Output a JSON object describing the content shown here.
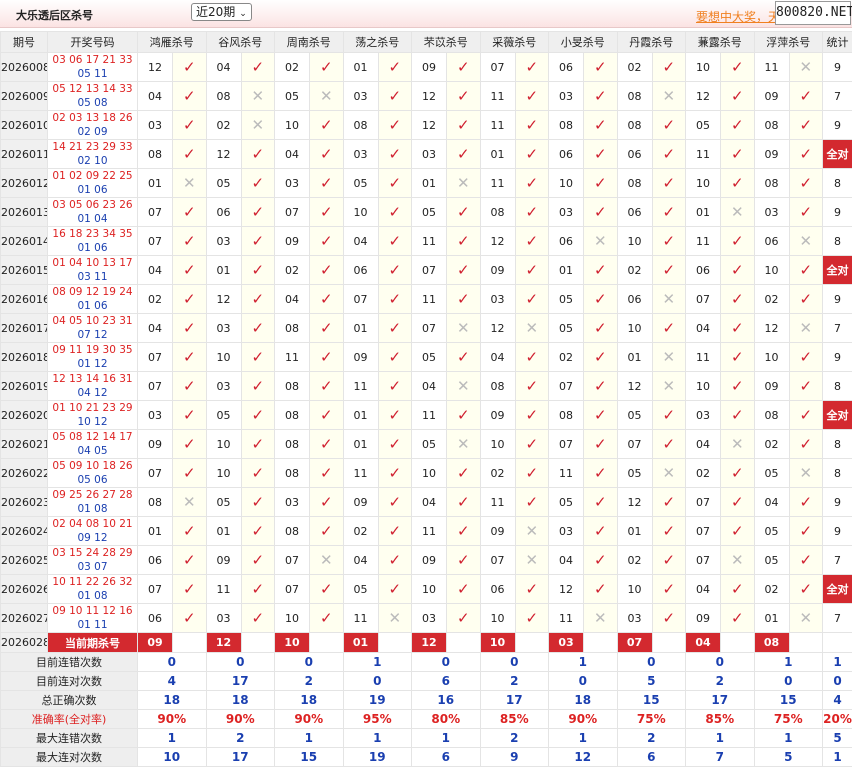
{
  "header": {
    "title": "大乐透后区杀号",
    "period_select": "近20期",
    "promo_link": "要想中大奖，天",
    "brand": "800820.NET"
  },
  "columns": {
    "period": "期号",
    "draw": "开奖号码",
    "predictors": [
      "鸿雁杀号",
      "谷风杀号",
      "周南杀号",
      "荡之杀号",
      "芣苡杀号",
      "采薇杀号",
      "小旻杀号",
      "丹霞杀号",
      "蒹露杀号",
      "浮萍杀号"
    ],
    "stat": "统计"
  },
  "symbols": {
    "ok": "✓",
    "no": "✕"
  },
  "colors": {
    "accent": "#d3292f",
    "blue": "#1a3fb0",
    "link": "#f08020"
  },
  "rows": [
    {
      "period": "2026008",
      "red": "03 06 17 21 33",
      "blue": "05 11",
      "picks": [
        [
          "12",
          1
        ],
        [
          "04",
          1
        ],
        [
          "02",
          1
        ],
        [
          "01",
          1
        ],
        [
          "09",
          1
        ],
        [
          "07",
          1
        ],
        [
          "06",
          1
        ],
        [
          "02",
          1
        ],
        [
          "10",
          1
        ],
        [
          "11",
          0
        ]
      ],
      "stat": "9"
    },
    {
      "period": "2026009",
      "red": "05 12 13 14 33",
      "blue": "05 08",
      "picks": [
        [
          "04",
          1
        ],
        [
          "08",
          0
        ],
        [
          "05",
          0
        ],
        [
          "03",
          1
        ],
        [
          "12",
          1
        ],
        [
          "11",
          1
        ],
        [
          "03",
          1
        ],
        [
          "08",
          0
        ],
        [
          "12",
          1
        ],
        [
          "09",
          1
        ]
      ],
      "stat": "7"
    },
    {
      "period": "2026010",
      "red": "02 03 13 18 26",
      "blue": "02 09",
      "picks": [
        [
          "03",
          1
        ],
        [
          "02",
          0
        ],
        [
          "10",
          1
        ],
        [
          "08",
          1
        ],
        [
          "12",
          1
        ],
        [
          "11",
          1
        ],
        [
          "08",
          1
        ],
        [
          "08",
          1
        ],
        [
          "05",
          1
        ],
        [
          "08",
          1
        ]
      ],
      "stat": "9"
    },
    {
      "period": "2026011",
      "red": "14 21 23 29 33",
      "blue": "02 10",
      "picks": [
        [
          "08",
          1
        ],
        [
          "12",
          1
        ],
        [
          "04",
          1
        ],
        [
          "03",
          1
        ],
        [
          "03",
          1
        ],
        [
          "01",
          1
        ],
        [
          "06",
          1
        ],
        [
          "06",
          1
        ],
        [
          "11",
          1
        ],
        [
          "09",
          1
        ]
      ],
      "stat": "全对"
    },
    {
      "period": "2026012",
      "red": "01 02 09 22 25",
      "blue": "01 06",
      "picks": [
        [
          "01",
          0
        ],
        [
          "05",
          1
        ],
        [
          "03",
          1
        ],
        [
          "05",
          1
        ],
        [
          "01",
          0
        ],
        [
          "11",
          1
        ],
        [
          "10",
          1
        ],
        [
          "08",
          1
        ],
        [
          "10",
          1
        ],
        [
          "08",
          1
        ]
      ],
      "stat": "8"
    },
    {
      "period": "2026013",
      "red": "03 05 06 23 26",
      "blue": "01 04",
      "picks": [
        [
          "07",
          1
        ],
        [
          "06",
          1
        ],
        [
          "07",
          1
        ],
        [
          "10",
          1
        ],
        [
          "05",
          1
        ],
        [
          "08",
          1
        ],
        [
          "03",
          1
        ],
        [
          "06",
          1
        ],
        [
          "01",
          0
        ],
        [
          "03",
          1
        ]
      ],
      "stat": "9"
    },
    {
      "period": "2026014",
      "red": "16 18 23 34 35",
      "blue": "01 06",
      "picks": [
        [
          "07",
          1
        ],
        [
          "03",
          1
        ],
        [
          "09",
          1
        ],
        [
          "04",
          1
        ],
        [
          "11",
          1
        ],
        [
          "12",
          1
        ],
        [
          "06",
          0
        ],
        [
          "10",
          1
        ],
        [
          "11",
          1
        ],
        [
          "06",
          0
        ]
      ],
      "stat": "8"
    },
    {
      "period": "2026015",
      "red": "01 04 10 13 17",
      "blue": "03 11",
      "picks": [
        [
          "04",
          1
        ],
        [
          "01",
          1
        ],
        [
          "02",
          1
        ],
        [
          "06",
          1
        ],
        [
          "07",
          1
        ],
        [
          "09",
          1
        ],
        [
          "01",
          1
        ],
        [
          "02",
          1
        ],
        [
          "06",
          1
        ],
        [
          "10",
          1
        ]
      ],
      "stat": "全对"
    },
    {
      "period": "2026016",
      "red": "08 09 12 19 24",
      "blue": "01 06",
      "picks": [
        [
          "02",
          1
        ],
        [
          "12",
          1
        ],
        [
          "04",
          1
        ],
        [
          "07",
          1
        ],
        [
          "11",
          1
        ],
        [
          "03",
          1
        ],
        [
          "05",
          1
        ],
        [
          "06",
          0
        ],
        [
          "07",
          1
        ],
        [
          "02",
          1
        ]
      ],
      "stat": "9"
    },
    {
      "period": "2026017",
      "red": "04 05 10 23 31",
      "blue": "07 12",
      "picks": [
        [
          "04",
          1
        ],
        [
          "03",
          1
        ],
        [
          "08",
          1
        ],
        [
          "01",
          1
        ],
        [
          "07",
          0
        ],
        [
          "12",
          0
        ],
        [
          "05",
          1
        ],
        [
          "10",
          1
        ],
        [
          "04",
          1
        ],
        [
          "12",
          0
        ]
      ],
      "stat": "7"
    },
    {
      "period": "2026018",
      "red": "09 11 19 30 35",
      "blue": "01 12",
      "picks": [
        [
          "07",
          1
        ],
        [
          "10",
          1
        ],
        [
          "11",
          1
        ],
        [
          "09",
          1
        ],
        [
          "05",
          1
        ],
        [
          "04",
          1
        ],
        [
          "02",
          1
        ],
        [
          "01",
          0
        ],
        [
          "11",
          1
        ],
        [
          "10",
          1
        ]
      ],
      "stat": "9"
    },
    {
      "period": "2026019",
      "red": "12 13 14 16 31",
      "blue": "04 12",
      "picks": [
        [
          "07",
          1
        ],
        [
          "03",
          1
        ],
        [
          "08",
          1
        ],
        [
          "11",
          1
        ],
        [
          "04",
          0
        ],
        [
          "08",
          1
        ],
        [
          "07",
          1
        ],
        [
          "12",
          0
        ],
        [
          "10",
          1
        ],
        [
          "09",
          1
        ]
      ],
      "stat": "8"
    },
    {
      "period": "2026020",
      "red": "01 10 21 23 29",
      "blue": "10 12",
      "picks": [
        [
          "03",
          1
        ],
        [
          "05",
          1
        ],
        [
          "08",
          1
        ],
        [
          "01",
          1
        ],
        [
          "11",
          1
        ],
        [
          "09",
          1
        ],
        [
          "08",
          1
        ],
        [
          "05",
          1
        ],
        [
          "03",
          1
        ],
        [
          "08",
          1
        ]
      ],
      "stat": "全对"
    },
    {
      "period": "2026021",
      "red": "05 08 12 14 17",
      "blue": "04 05",
      "picks": [
        [
          "09",
          1
        ],
        [
          "10",
          1
        ],
        [
          "08",
          1
        ],
        [
          "01",
          1
        ],
        [
          "05",
          0
        ],
        [
          "10",
          1
        ],
        [
          "07",
          1
        ],
        [
          "07",
          1
        ],
        [
          "04",
          0
        ],
        [
          "02",
          1
        ]
      ],
      "stat": "8"
    },
    {
      "period": "2026022",
      "red": "05 09 10 18 26",
      "blue": "05 06",
      "picks": [
        [
          "07",
          1
        ],
        [
          "10",
          1
        ],
        [
          "08",
          1
        ],
        [
          "11",
          1
        ],
        [
          "10",
          1
        ],
        [
          "02",
          1
        ],
        [
          "11",
          1
        ],
        [
          "05",
          0
        ],
        [
          "02",
          1
        ],
        [
          "05",
          0
        ]
      ],
      "stat": "8"
    },
    {
      "period": "2026023",
      "red": "09 25 26 27 28",
      "blue": "01 08",
      "picks": [
        [
          "08",
          0
        ],
        [
          "05",
          1
        ],
        [
          "03",
          1
        ],
        [
          "09",
          1
        ],
        [
          "04",
          1
        ],
        [
          "11",
          1
        ],
        [
          "05",
          1
        ],
        [
          "12",
          1
        ],
        [
          "07",
          1
        ],
        [
          "04",
          1
        ]
      ],
      "stat": "9"
    },
    {
      "period": "2026024",
      "red": "02 04 08 10 21",
      "blue": "09 12",
      "picks": [
        [
          "01",
          1
        ],
        [
          "01",
          1
        ],
        [
          "08",
          1
        ],
        [
          "02",
          1
        ],
        [
          "11",
          1
        ],
        [
          "09",
          0
        ],
        [
          "03",
          1
        ],
        [
          "01",
          1
        ],
        [
          "07",
          1
        ],
        [
          "05",
          1
        ]
      ],
      "stat": "9"
    },
    {
      "period": "2026025",
      "red": "03 15 24 28 29",
      "blue": "03 07",
      "picks": [
        [
          "06",
          1
        ],
        [
          "09",
          1
        ],
        [
          "07",
          0
        ],
        [
          "04",
          1
        ],
        [
          "09",
          1
        ],
        [
          "07",
          0
        ],
        [
          "04",
          1
        ],
        [
          "02",
          1
        ],
        [
          "07",
          0
        ],
        [
          "05",
          1
        ]
      ],
      "stat": "7"
    },
    {
      "period": "2026026",
      "red": "10 11 22 26 32",
      "blue": "01 08",
      "picks": [
        [
          "07",
          1
        ],
        [
          "11",
          1
        ],
        [
          "07",
          1
        ],
        [
          "05",
          1
        ],
        [
          "10",
          1
        ],
        [
          "06",
          1
        ],
        [
          "12",
          1
        ],
        [
          "10",
          1
        ],
        [
          "04",
          1
        ],
        [
          "02",
          1
        ]
      ],
      "stat": "全对"
    },
    {
      "period": "2026027",
      "red": "09 10 11 12 16",
      "blue": "01 11",
      "picks": [
        [
          "06",
          1
        ],
        [
          "03",
          1
        ],
        [
          "10",
          1
        ],
        [
          "11",
          0
        ],
        [
          "03",
          1
        ],
        [
          "10",
          1
        ],
        [
          "11",
          0
        ],
        [
          "03",
          1
        ],
        [
          "09",
          1
        ],
        [
          "01",
          0
        ]
      ],
      "stat": "7"
    }
  ],
  "current": {
    "period": "2026028",
    "label": "当前期杀号",
    "picks": [
      "09",
      "12",
      "10",
      "01",
      "12",
      "10",
      "03",
      "07",
      "04",
      "08"
    ]
  },
  "summary": [
    {
      "label": "目前连错次数",
      "values": [
        "0",
        "0",
        "0",
        "1",
        "0",
        "0",
        "1",
        "0",
        "0",
        "1",
        "1"
      ]
    },
    {
      "label": "目前连对次数",
      "values": [
        "4",
        "17",
        "2",
        "0",
        "6",
        "2",
        "0",
        "5",
        "2",
        "0",
        "0"
      ]
    },
    {
      "label": "总正确次数",
      "values": [
        "18",
        "18",
        "18",
        "19",
        "16",
        "17",
        "18",
        "15",
        "17",
        "15",
        "4"
      ]
    },
    {
      "label": "准确率(全对率)",
      "values": [
        "90%",
        "90%",
        "90%",
        "95%",
        "80%",
        "85%",
        "90%",
        "75%",
        "85%",
        "75%",
        "20%"
      ]
    },
    {
      "label": "最大连错次数",
      "values": [
        "1",
        "2",
        "1",
        "1",
        "1",
        "2",
        "1",
        "2",
        "1",
        "1",
        "5"
      ]
    },
    {
      "label": "最大连对次数",
      "values": [
        "10",
        "17",
        "15",
        "19",
        "6",
        "9",
        "12",
        "6",
        "7",
        "5",
        "1"
      ]
    }
  ]
}
